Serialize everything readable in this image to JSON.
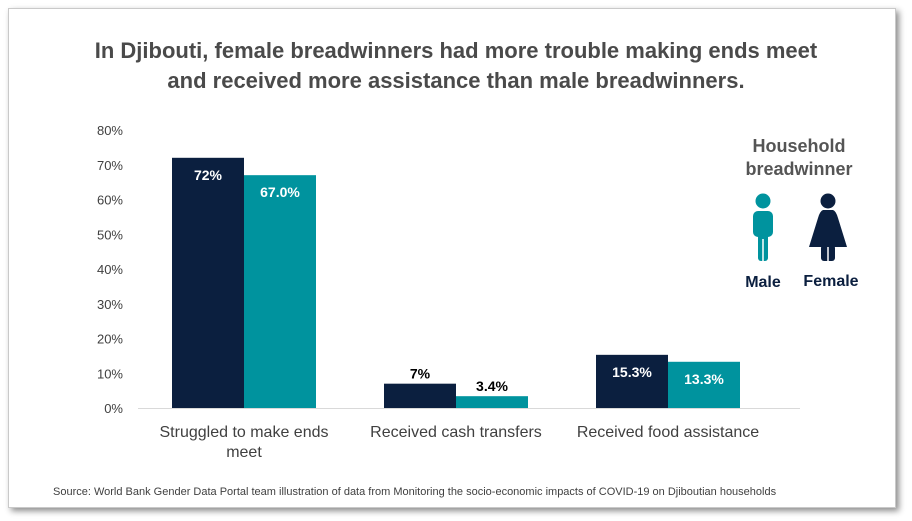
{
  "title_lines": [
    "In Djibouti, female breadwinners had more trouble making ends meet",
    "and received more assistance than male breadwinners."
  ],
  "chart_data": {
    "type": "bar",
    "title": "In Djibouti, female breadwinners had more trouble making ends meet and received more assistance than male breadwinners.",
    "categories": [
      [
        "Struggled to make ends",
        "meet"
      ],
      [
        "Received cash transfers"
      ],
      [
        "Received food assistance"
      ]
    ],
    "series": [
      {
        "name": "Female",
        "color": "#0b1f3f",
        "values": [
          72,
          7,
          15.3
        ],
        "labels": [
          "72%",
          "7%",
          "15.3%"
        ]
      },
      {
        "name": "Male",
        "color": "#00939e",
        "values": [
          67.0,
          3.4,
          13.3
        ],
        "labels": [
          "67.0%",
          "3.4%",
          "13.3%"
        ]
      }
    ],
    "ylim": [
      0,
      80
    ],
    "yticks": [
      0,
      10,
      20,
      30,
      40,
      50,
      60,
      70,
      80
    ],
    "ytick_labels": [
      "0%",
      "10%",
      "20%",
      "30%",
      "40%",
      "50%",
      "60%",
      "70%",
      "80%"
    ],
    "xlabel": "",
    "ylabel": ""
  },
  "legend": {
    "title_lines": [
      "Household",
      "breadwinner"
    ],
    "items": [
      {
        "label": "Male",
        "color": "#00939e",
        "icon": "male-person-icon"
      },
      {
        "label": "Female",
        "color": "#0b1f3f",
        "icon": "female-person-icon"
      }
    ]
  },
  "source": "Source: World Bank Gender Data Portal team illustration of data from Monitoring the socio-economic impacts of COVID-19 on Djiboutian households"
}
